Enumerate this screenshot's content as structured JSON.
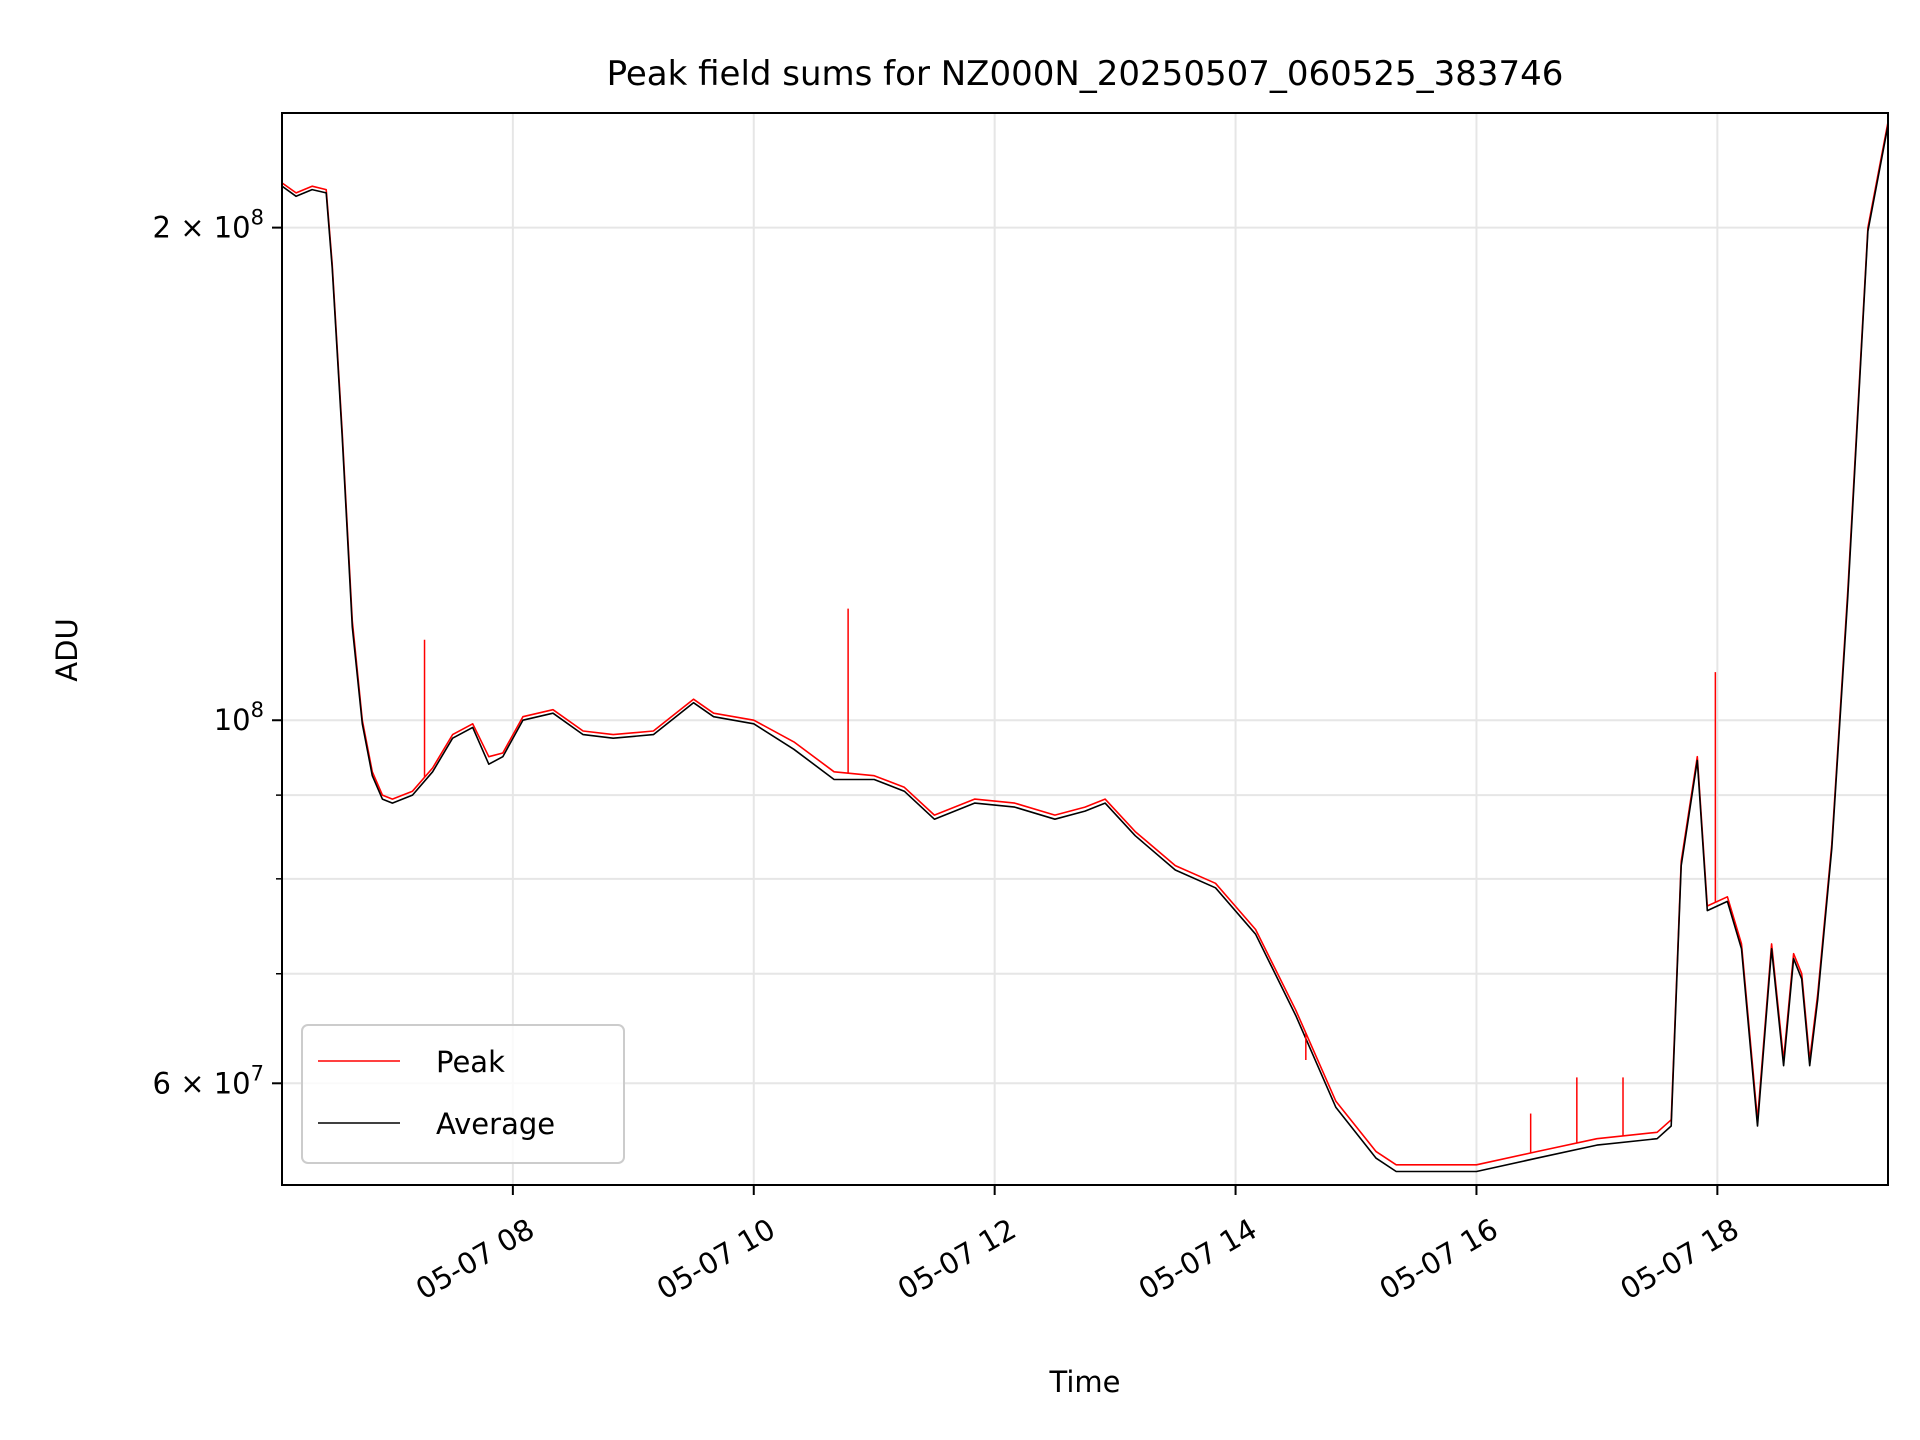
{
  "chart_data": {
    "type": "line",
    "title": "Peak field sums for NZ000N_20250507_060525_383746",
    "xlabel": "Time",
    "ylabel": "ADU",
    "y_scale": "log",
    "xlim": [
      "2025-05-07 06:05",
      "2025-05-07 19:25"
    ],
    "ylim": [
      52000000,
      235000000
    ],
    "x_ticks": [
      {
        "value": "2025-05-07 08:00",
        "label": "05-07 08"
      },
      {
        "value": "2025-05-07 10:00",
        "label": "05-07 10"
      },
      {
        "value": "2025-05-07 12:00",
        "label": "05-07 12"
      },
      {
        "value": "2025-05-07 14:00",
        "label": "05-07 14"
      },
      {
        "value": "2025-05-07 16:00",
        "label": "05-07 16"
      },
      {
        "value": "2025-05-07 18:00",
        "label": "05-07 18"
      }
    ],
    "y_major_ticks": [
      {
        "value": 60000000,
        "mantissa": "6",
        "exponent": "7"
      },
      {
        "value": 100000000,
        "mantissa": "",
        "exponent": "8"
      },
      {
        "value": 200000000,
        "mantissa": "2",
        "exponent": "8"
      }
    ],
    "y_minor_ticks": [
      70000000,
      80000000,
      90000000
    ],
    "grid": true,
    "legend": {
      "position": "lower-left"
    },
    "series": [
      {
        "name": "Peak",
        "color": "#ff0000",
        "x": [
          "2025-05-07 06:05",
          "2025-05-07 06:12",
          "2025-05-07 06:20",
          "2025-05-07 06:27",
          "2025-05-07 06:30",
          "2025-05-07 06:35",
          "2025-05-07 06:40",
          "2025-05-07 06:45",
          "2025-05-07 06:50",
          "2025-05-07 06:55",
          "2025-05-07 07:00",
          "2025-05-07 07:10",
          "2025-05-07 07:20",
          "2025-05-07 07:30",
          "2025-05-07 07:40",
          "2025-05-07 07:48",
          "2025-05-07 07:55",
          "2025-05-07 08:05",
          "2025-05-07 08:20",
          "2025-05-07 08:35",
          "2025-05-07 08:50",
          "2025-05-07 09:10",
          "2025-05-07 09:30",
          "2025-05-07 09:40",
          "2025-05-07 10:00",
          "2025-05-07 10:20",
          "2025-05-07 10:40",
          "2025-05-07 11:00",
          "2025-05-07 11:15",
          "2025-05-07 11:30",
          "2025-05-07 11:50",
          "2025-05-07 12:10",
          "2025-05-07 12:30",
          "2025-05-07 12:45",
          "2025-05-07 12:55",
          "2025-05-07 13:10",
          "2025-05-07 13:30",
          "2025-05-07 13:50",
          "2025-05-07 14:10",
          "2025-05-07 14:30",
          "2025-05-07 14:50",
          "2025-05-07 15:10",
          "2025-05-07 15:20",
          "2025-05-07 15:40",
          "2025-05-07 16:00",
          "2025-05-07 16:30",
          "2025-05-07 17:00",
          "2025-05-07 17:30",
          "2025-05-07 17:37",
          "2025-05-07 17:42",
          "2025-05-07 17:50",
          "2025-05-07 17:55",
          "2025-05-07 18:05",
          "2025-05-07 18:12",
          "2025-05-07 18:20",
          "2025-05-07 18:27",
          "2025-05-07 18:33",
          "2025-05-07 18:38",
          "2025-05-07 18:42",
          "2025-05-07 18:46",
          "2025-05-07 18:50",
          "2025-05-07 18:57",
          "2025-05-07 19:05",
          "2025-05-07 19:15",
          "2025-05-07 19:25"
        ],
        "y": [
          213000000,
          210000000,
          212000000,
          211000000,
          190000000,
          150000000,
          115000000,
          100000000,
          93000000,
          90000000,
          89500000,
          90500000,
          93500000,
          98000000,
          99500000,
          95000000,
          95500000,
          100500000,
          101500000,
          98500000,
          98000000,
          98500000,
          103000000,
          101000000,
          100000000,
          97000000,
          93000000,
          92500000,
          91000000,
          87500000,
          89500000,
          89000000,
          87500000,
          88500000,
          89500000,
          85500000,
          81500000,
          79500000,
          74500000,
          66500000,
          58500000,
          54500000,
          53500000,
          53500000,
          53500000,
          54500000,
          55500000,
          56000000,
          57000000,
          82000000,
          95000000,
          77000000,
          78000000,
          73000000,
          57000000,
          73000000,
          62000000,
          72000000,
          70000000,
          62000000,
          68000000,
          84000000,
          120000000,
          200000000,
          232000000
        ]
      },
      {
        "name": "Average",
        "color": "#000000",
        "x": [
          "2025-05-07 06:05",
          "2025-05-07 06:12",
          "2025-05-07 06:20",
          "2025-05-07 06:27",
          "2025-05-07 06:30",
          "2025-05-07 06:35",
          "2025-05-07 06:40",
          "2025-05-07 06:45",
          "2025-05-07 06:50",
          "2025-05-07 06:55",
          "2025-05-07 07:00",
          "2025-05-07 07:10",
          "2025-05-07 07:20",
          "2025-05-07 07:30",
          "2025-05-07 07:40",
          "2025-05-07 07:48",
          "2025-05-07 07:55",
          "2025-05-07 08:05",
          "2025-05-07 08:20",
          "2025-05-07 08:35",
          "2025-05-07 08:50",
          "2025-05-07 09:10",
          "2025-05-07 09:30",
          "2025-05-07 09:40",
          "2025-05-07 10:00",
          "2025-05-07 10:20",
          "2025-05-07 10:40",
          "2025-05-07 11:00",
          "2025-05-07 11:15",
          "2025-05-07 11:30",
          "2025-05-07 11:50",
          "2025-05-07 12:10",
          "2025-05-07 12:30",
          "2025-05-07 12:45",
          "2025-05-07 12:55",
          "2025-05-07 13:10",
          "2025-05-07 13:30",
          "2025-05-07 13:50",
          "2025-05-07 14:10",
          "2025-05-07 14:30",
          "2025-05-07 14:50",
          "2025-05-07 15:10",
          "2025-05-07 15:20",
          "2025-05-07 15:40",
          "2025-05-07 16:00",
          "2025-05-07 16:30",
          "2025-05-07 17:00",
          "2025-05-07 17:30",
          "2025-05-07 17:37",
          "2025-05-07 17:42",
          "2025-05-07 17:50",
          "2025-05-07 17:55",
          "2025-05-07 18:05",
          "2025-05-07 18:12",
          "2025-05-07 18:20",
          "2025-05-07 18:27",
          "2025-05-07 18:33",
          "2025-05-07 18:38",
          "2025-05-07 18:42",
          "2025-05-07 18:46",
          "2025-05-07 18:50",
          "2025-05-07 18:57",
          "2025-05-07 19:05",
          "2025-05-07 19:15",
          "2025-05-07 19:25"
        ],
        "y": [
          212000000,
          209000000,
          211000000,
          210000000,
          189000000,
          149000000,
          114000000,
          99500000,
          92500000,
          89500000,
          89000000,
          90000000,
          93000000,
          97500000,
          99000000,
          94000000,
          95000000,
          100000000,
          101000000,
          98000000,
          97500000,
          98000000,
          102500000,
          100500000,
          99500000,
          96000000,
          92000000,
          92000000,
          90500000,
          87000000,
          89000000,
          88500000,
          87000000,
          88000000,
          89000000,
          85000000,
          81000000,
          79000000,
          74000000,
          66000000,
          58000000,
          54000000,
          53000000,
          53000000,
          53000000,
          54000000,
          55000000,
          55500000,
          56500000,
          81500000,
          94500000,
          76500000,
          77500000,
          72500000,
          56500000,
          72500000,
          61500000,
          71500000,
          69500000,
          61500000,
          67500000,
          83500000,
          119000000,
          199000000,
          231000000
        ]
      }
    ],
    "spikes": [
      {
        "x": "2025-05-07 07:16",
        "y": 112000000
      },
      {
        "x": "2025-05-07 10:47",
        "y": 117000000
      },
      {
        "x": "2025-05-07 14:35",
        "y": 62000000
      },
      {
        "x": "2025-05-07 16:27",
        "y": 57500000
      },
      {
        "x": "2025-05-07 16:50",
        "y": 60500000
      },
      {
        "x": "2025-05-07 17:13",
        "y": 60500000
      },
      {
        "x": "2025-05-07 17:59",
        "y": 107000000
      }
    ]
  }
}
